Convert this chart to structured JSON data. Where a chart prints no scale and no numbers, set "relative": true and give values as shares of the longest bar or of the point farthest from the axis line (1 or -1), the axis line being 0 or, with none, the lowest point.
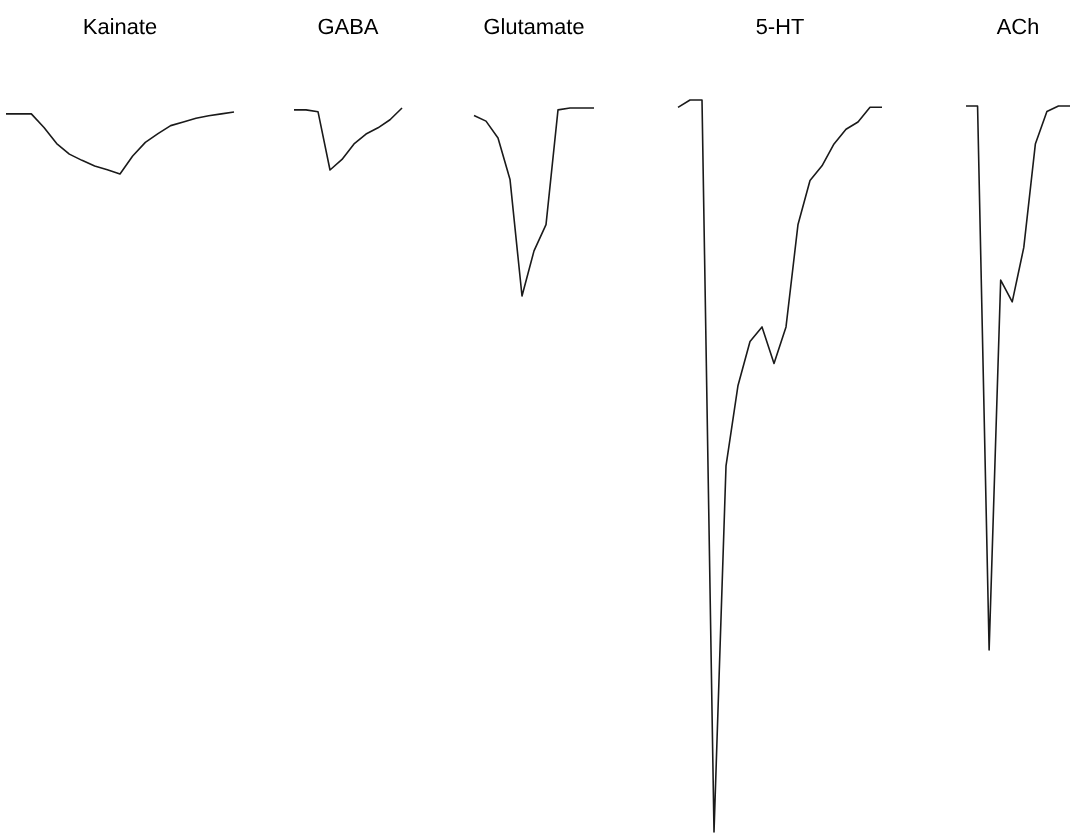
{
  "chart_data": [
    {
      "type": "line",
      "relative": true,
      "title": "Kainate",
      "categories": [
        null,
        null,
        null,
        null,
        null,
        null,
        null,
        null,
        null,
        null,
        null,
        null,
        null,
        null,
        null,
        null,
        null,
        null,
        null
      ],
      "series": [
        {
          "color": "#1a1a1a",
          "values": [
            0.97,
            0.97,
            0.97,
            0.75,
            0.49,
            0.32,
            0.22,
            0.13,
            0.07,
            0,
            0.29,
            0.51,
            0.65,
            0.78,
            0.84,
            0.9,
            0.94,
            0.97,
            1
          ]
        }
      ]
    },
    {
      "type": "line",
      "relative": true,
      "title": "GABA",
      "categories": [
        null,
        null,
        null,
        null,
        null,
        null,
        null,
        null,
        null,
        null
      ],
      "series": [
        {
          "color": "#1a1a1a",
          "values": [
            0.97,
            0.97,
            0.94,
            0,
            0.17,
            0.42,
            0.58,
            0.68,
            0.81,
            1
          ]
        }
      ]
    },
    {
      "type": "line",
      "relative": true,
      "title": "Glutamate",
      "categories": [
        null,
        null,
        null,
        null,
        null,
        null,
        null,
        null,
        null,
        null,
        null
      ],
      "series": [
        {
          "color": "#1a1a1a",
          "values": [
            0.96,
            0.93,
            0.84,
            0.62,
            0,
            0.24,
            0.38,
            0.99,
            1,
            1,
            1
          ]
        }
      ]
    },
    {
      "type": "line",
      "relative": true,
      "title": "5-HT",
      "categories": [
        null,
        null,
        null,
        null,
        null,
        null,
        null,
        null,
        null,
        null,
        null,
        null,
        null,
        null,
        null,
        null,
        null,
        null
      ],
      "series": [
        {
          "color": "#1a1a1a",
          "values": [
            0.99,
            1,
            1,
            0,
            0.5,
            0.61,
            0.67,
            0.69,
            0.64,
            0.69,
            0.83,
            0.89,
            0.91,
            0.94,
            0.96,
            0.97,
            0.99,
            0.99
          ]
        }
      ]
    },
    {
      "type": "line",
      "relative": true,
      "title": "ACh",
      "categories": [
        null,
        null,
        null,
        null,
        null,
        null,
        null,
        null,
        null,
        null
      ],
      "series": [
        {
          "color": "#1a1a1a",
          "values": [
            1,
            1,
            0,
            0.68,
            0.64,
            0.74,
            0.93,
            0.99,
            1,
            1
          ]
        }
      ]
    }
  ]
}
